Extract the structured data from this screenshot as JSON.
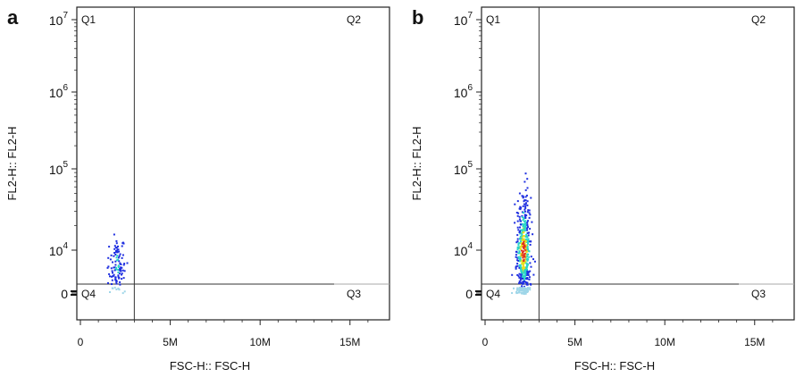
{
  "chart_data": [
    {
      "panel_label": "a",
      "type": "scatter",
      "xlabel": "FSC-H:: FSC-H",
      "ylabel": "FL2-H:: FL2-H",
      "x_ticks": [
        "0",
        "5M",
        "10M",
        "15M"
      ],
      "x_tick_values": [
        0,
        5000000,
        10000000,
        15000000
      ],
      "xlim": [
        0,
        17000000
      ],
      "y_scale": "biexponential",
      "y_ticks": [
        {
          "base": "0",
          "exp": ""
        },
        {
          "base": "10",
          "exp": "4"
        },
        {
          "base": "10",
          "exp": "5"
        },
        {
          "base": "10",
          "exp": "6"
        },
        {
          "base": "10",
          "exp": "7"
        }
      ],
      "y_tick_values": [
        0,
        10000,
        100000,
        1000000,
        10000000
      ],
      "quadrant_gate": {
        "x": 3000000,
        "y": 0
      },
      "quadrants": [
        "Q1",
        "Q2",
        "Q3",
        "Q4"
      ],
      "population": {
        "x_center": 2000000,
        "x_spread": 400000,
        "y_peak": 6000,
        "y_max": 27000,
        "count": 110,
        "density": "sparse"
      },
      "colors": {
        "low": "#1f2fe0",
        "mid": "#2bd4c8",
        "high": "#e8e020",
        "peak": "#e03020"
      }
    },
    {
      "panel_label": "b",
      "type": "scatter",
      "xlabel": "FSC-H:: FSC-H",
      "ylabel": "FL2-H:: FL2-H",
      "x_ticks": [
        "0",
        "5M",
        "10M",
        "15M"
      ],
      "x_tick_values": [
        0,
        5000000,
        10000000,
        15000000
      ],
      "xlim": [
        0,
        17000000
      ],
      "y_scale": "biexponential",
      "y_ticks": [
        {
          "base": "0",
          "exp": ""
        },
        {
          "base": "10",
          "exp": "4"
        },
        {
          "base": "10",
          "exp": "5"
        },
        {
          "base": "10",
          "exp": "6"
        },
        {
          "base": "10",
          "exp": "7"
        }
      ],
      "y_tick_values": [
        0,
        10000,
        100000,
        1000000,
        10000000
      ],
      "quadrant_gate": {
        "x": 3000000,
        "y": 0
      },
      "quadrants": [
        "Q1",
        "Q2",
        "Q3",
        "Q4"
      ],
      "population": {
        "x_center": 2100000,
        "x_spread": 350000,
        "y_peak": 10000,
        "y_max": 90000,
        "count": 520,
        "density": "dense"
      },
      "colors": {
        "low": "#1f2fe0",
        "mid": "#2bd4c8",
        "high": "#e8e020",
        "peak": "#e03020"
      }
    }
  ]
}
